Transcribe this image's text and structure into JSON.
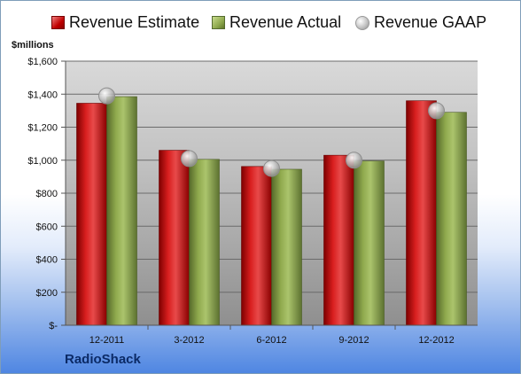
{
  "unit_label": "$millions",
  "company": "RadioShack",
  "colors": {
    "estimate": "#c00000",
    "actual": "#8fa94d",
    "gaap": "#b8b8b8"
  },
  "chart_data": {
    "type": "bar",
    "categories": [
      "12-2011",
      "3-2012",
      "6-2012",
      "9-2012",
      "12-2012"
    ],
    "series": [
      {
        "name": "Revenue Estimate",
        "values": [
          1345,
          1060,
          962,
          1030,
          1360
        ]
      },
      {
        "name": "Revenue Actual",
        "values": [
          1385,
          1005,
          945,
          995,
          1290
        ]
      },
      {
        "name": "Revenue GAAP",
        "type": "scatter",
        "values": [
          1390,
          1010,
          950,
          1000,
          1300
        ]
      }
    ],
    "ylim": [
      0,
      1600
    ],
    "ytick_values": [
      0,
      200,
      400,
      600,
      800,
      1000,
      1200,
      1400,
      1600
    ],
    "ytick_labels": [
      "$-",
      "$200",
      "$400",
      "$600",
      "$800",
      "$1,000",
      "$1,200",
      "$1,400",
      "$1,600"
    ],
    "grid": true,
    "legend": "top"
  }
}
